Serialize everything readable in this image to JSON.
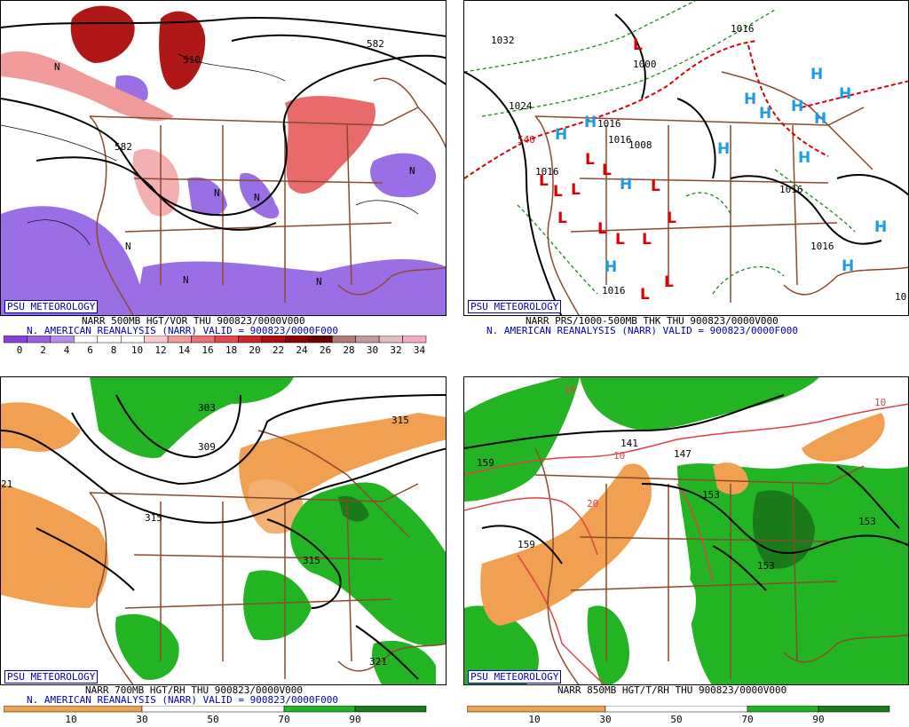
{
  "badge": "PSU METEOROLOGY",
  "panels": {
    "p500": {
      "line1": "NARR 500MB HGT/VOR THU 900823/0000V000",
      "line2": "N. AMERICAN REANALYSIS (NARR) VALID = 900823/0000F000",
      "scale_labels": [
        "0",
        "2",
        "4",
        "6",
        "8",
        "10",
        "12",
        "14",
        "16",
        "18",
        "20",
        "22",
        "24",
        "26",
        "28",
        "30",
        "32",
        "34"
      ],
      "scale_colors": [
        "#8a3fd8",
        "#9a5ee0",
        "#b391ea",
        "#ffffff",
        "#ffffff",
        "#ffffff",
        "#f7c9c9",
        "#f09a9a",
        "#e87070",
        "#de4a4a",
        "#c62828",
        "#a81010",
        "#8b0000",
        "#6a0000",
        "#b07a7a",
        "#c49a9a",
        "#e3bcbc",
        "#f4a9c4"
      ],
      "contour_labels": [
        "582",
        "582",
        "510",
        "N",
        "N",
        "N",
        "N",
        "N",
        "N",
        "N"
      ]
    },
    "pprs": {
      "line1": "NARR PRS/1000-500MB THK THU 900823/0000V000",
      "line2": "N. AMERICAN REANALYSIS (NARR) VALID = 900823/0000F000",
      "contour_labels": [
        "1032",
        "1024",
        "1016",
        "1016",
        "1016",
        "1008",
        "1016",
        "1016",
        "1016",
        "1000",
        "1016",
        "540",
        "10"
      ],
      "highs": "H",
      "lows": "L"
    },
    "p700": {
      "line1": "NARR 700MB HGT/RH THU 900823/0000V000",
      "line2": "N. AMERICAN REANALYSIS (NARR) VALID = 900823/0000F000",
      "scale_labels": [
        "10",
        "30",
        "50",
        "70",
        "90"
      ],
      "contour_labels": [
        "303",
        "309",
        "315",
        "315",
        "315",
        "321",
        "21"
      ]
    },
    "p850": {
      "line1": "NARR 850MB HGT/T/RH THU 900823/0000V000",
      "scale_labels": [
        "10",
        "30",
        "50",
        "70",
        "90"
      ],
      "contour_labels": [
        "159",
        "159",
        "153",
        "153",
        "153",
        "141",
        "147",
        "10",
        "10",
        "20",
        "10"
      ]
    }
  },
  "colors": {
    "border": "#8b4a2b",
    "contour": "#000000",
    "thickness_red": "#dd0000",
    "thickness_green": "#1a8a1a",
    "high_blue": "#1e9ee0",
    "low_red": "#dd0000",
    "rh_orange": "#f0a050",
    "rh_green": "#22b422",
    "rh_dkgreen": "#1a7a1a",
    "vor_purple": "#9a5ee0",
    "vor_red": "#e05a5a",
    "temp_red": "#e04040"
  }
}
